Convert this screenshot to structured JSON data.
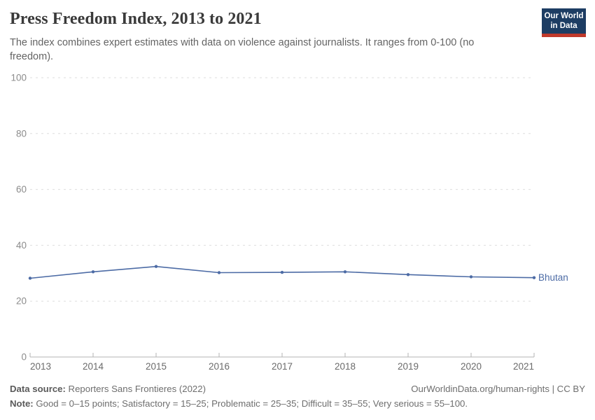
{
  "header": {
    "title": "Press Freedom Index, 2013 to 2021",
    "subtitle": "The index combines expert estimates with data on violence against journalists. It ranges from 0-100 (no freedom)."
  },
  "logo": {
    "line1": "Our World",
    "line2": "in Data",
    "bg_color": "#1d3d63",
    "stripe_color": "#c0392b"
  },
  "chart_data": {
    "type": "line",
    "title": "Press Freedom Index, 2013 to 2021",
    "x": [
      2013,
      2014,
      2015,
      2016,
      2017,
      2018,
      2019,
      2020,
      2021
    ],
    "x_tick_labels": [
      "2013",
      "2014",
      "2015",
      "2016",
      "2017",
      "2018",
      "2019",
      "2020",
      "2021"
    ],
    "series": [
      {
        "name": "Bhutan",
        "color": "#4c6ba5",
        "values": [
          28.2,
          30.5,
          32.4,
          30.2,
          30.3,
          30.5,
          29.5,
          28.7,
          28.4
        ]
      }
    ],
    "ylim": [
      0,
      100
    ],
    "yticks": [
      0,
      20,
      40,
      60,
      80,
      100
    ],
    "xlabel": "",
    "ylabel": "",
    "grid": "horizontal-dashed",
    "legend_position": "line-end-label"
  },
  "axis_style": {
    "gridline_color": "#dedede",
    "axis_line_color": "#b3b3b3",
    "y_label_color": "#8c8c8c",
    "x_label_color": "#6b6b6b"
  },
  "footer": {
    "data_source_label": "Data source:",
    "data_source_value": " Reporters Sans Frontieres (2022)",
    "attribution": "OurWorldinData.org/human-rights | CC BY",
    "note_label": "Note:",
    "note_value": " Good = 0–15 points; Satisfactory = 15–25; Problematic = 25–35; Difficult = 35–55; Very serious = 55–100."
  }
}
